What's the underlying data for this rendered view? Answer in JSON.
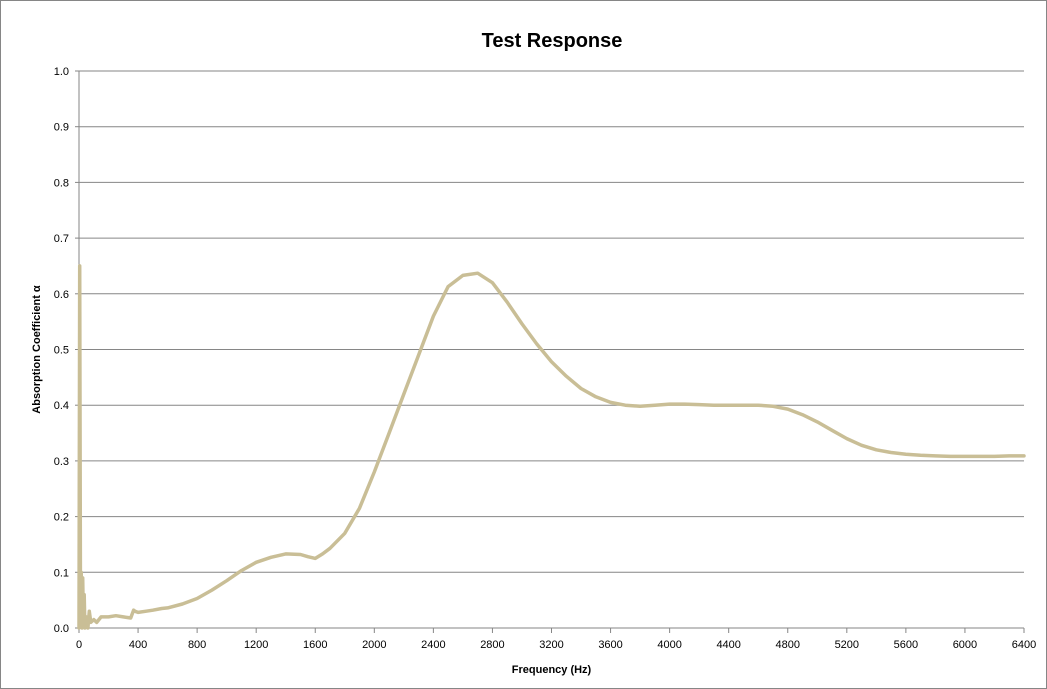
{
  "chart_data": {
    "type": "line",
    "title": "Test Response",
    "xlabel": "Frequency (Hz)",
    "ylabel": "Absorption Coefficient α",
    "xlim": [
      0,
      6400
    ],
    "ylim": [
      0,
      1.0
    ],
    "x_ticks": [
      0,
      400,
      800,
      1200,
      1600,
      2000,
      2400,
      2800,
      3200,
      3600,
      4000,
      4400,
      4800,
      5200,
      5600,
      6000,
      6400
    ],
    "y_ticks": [
      "0.0",
      "0.1",
      "0.2",
      "0.3",
      "0.4",
      "0.5",
      "0.6",
      "0.7",
      "0.8",
      "0.9",
      "1.0"
    ],
    "grid": "horizontal",
    "legend": "none",
    "line_color": "#C9BE96",
    "series": [
      {
        "x": [
          0,
          5,
          10,
          15,
          20,
          25,
          30,
          35,
          40,
          50,
          60,
          70,
          80,
          100,
          120,
          150,
          200,
          250,
          300,
          350,
          370,
          380,
          400,
          450,
          500,
          560,
          600,
          700,
          800,
          900,
          1000,
          1100,
          1200,
          1300,
          1400,
          1500,
          1550,
          1600,
          1650,
          1700,
          1800,
          1900,
          2000,
          2100,
          2200,
          2300,
          2400,
          2500,
          2600,
          2700,
          2800,
          2900,
          3000,
          3100,
          3200,
          3300,
          3400,
          3500,
          3600,
          3700,
          3800,
          3900,
          4000,
          4100,
          4200,
          4300,
          4400,
          4500,
          4600,
          4700,
          4800,
          4900,
          5000,
          5100,
          5200,
          5300,
          5400,
          5500,
          5600,
          5700,
          5800,
          5900,
          6000,
          6100,
          6200,
          6300,
          6400
        ],
        "y": [
          0.0,
          0.65,
          0.02,
          0.1,
          0.0,
          0.09,
          0.01,
          0.06,
          0.0,
          0.02,
          0.0,
          0.03,
          0.01,
          0.015,
          0.01,
          0.02,
          0.02,
          0.022,
          0.02,
          0.018,
          0.032,
          0.03,
          0.028,
          0.03,
          0.032,
          0.035,
          0.036,
          0.043,
          0.053,
          0.068,
          0.085,
          0.103,
          0.118,
          0.127,
          0.133,
          0.132,
          0.128,
          0.125,
          0.133,
          0.143,
          0.17,
          0.215,
          0.28,
          0.35,
          0.42,
          0.49,
          0.56,
          0.613,
          0.633,
          0.637,
          0.62,
          0.585,
          0.546,
          0.51,
          0.478,
          0.452,
          0.43,
          0.415,
          0.405,
          0.4,
          0.398,
          0.4,
          0.402,
          0.402,
          0.401,
          0.4,
          0.4,
          0.4,
          0.4,
          0.398,
          0.393,
          0.383,
          0.37,
          0.355,
          0.34,
          0.328,
          0.32,
          0.315,
          0.312,
          0.31,
          0.309,
          0.308,
          0.308,
          0.308,
          0.308,
          0.309,
          0.309
        ]
      }
    ]
  }
}
